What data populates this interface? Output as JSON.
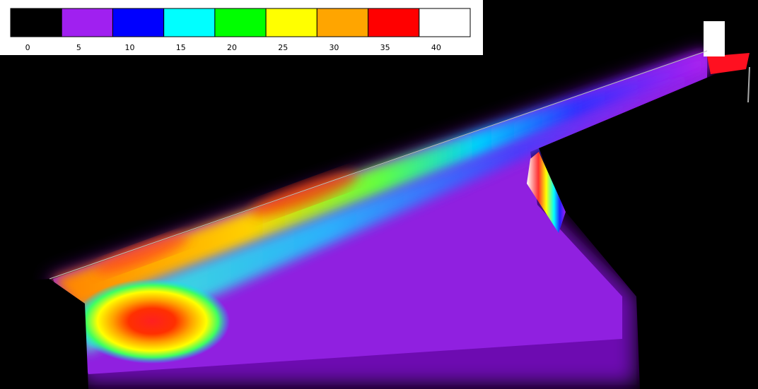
{
  "legend": {
    "labels": [
      0,
      5,
      10,
      15,
      20,
      25,
      30,
      35,
      40
    ],
    "colors": [
      "#000000",
      "#a020f0",
      "#0000ff",
      "#00ffff",
      "#00ff00",
      "#ffff00",
      "#ffa500",
      "#ff0000",
      "#ffffff"
    ]
  }
}
